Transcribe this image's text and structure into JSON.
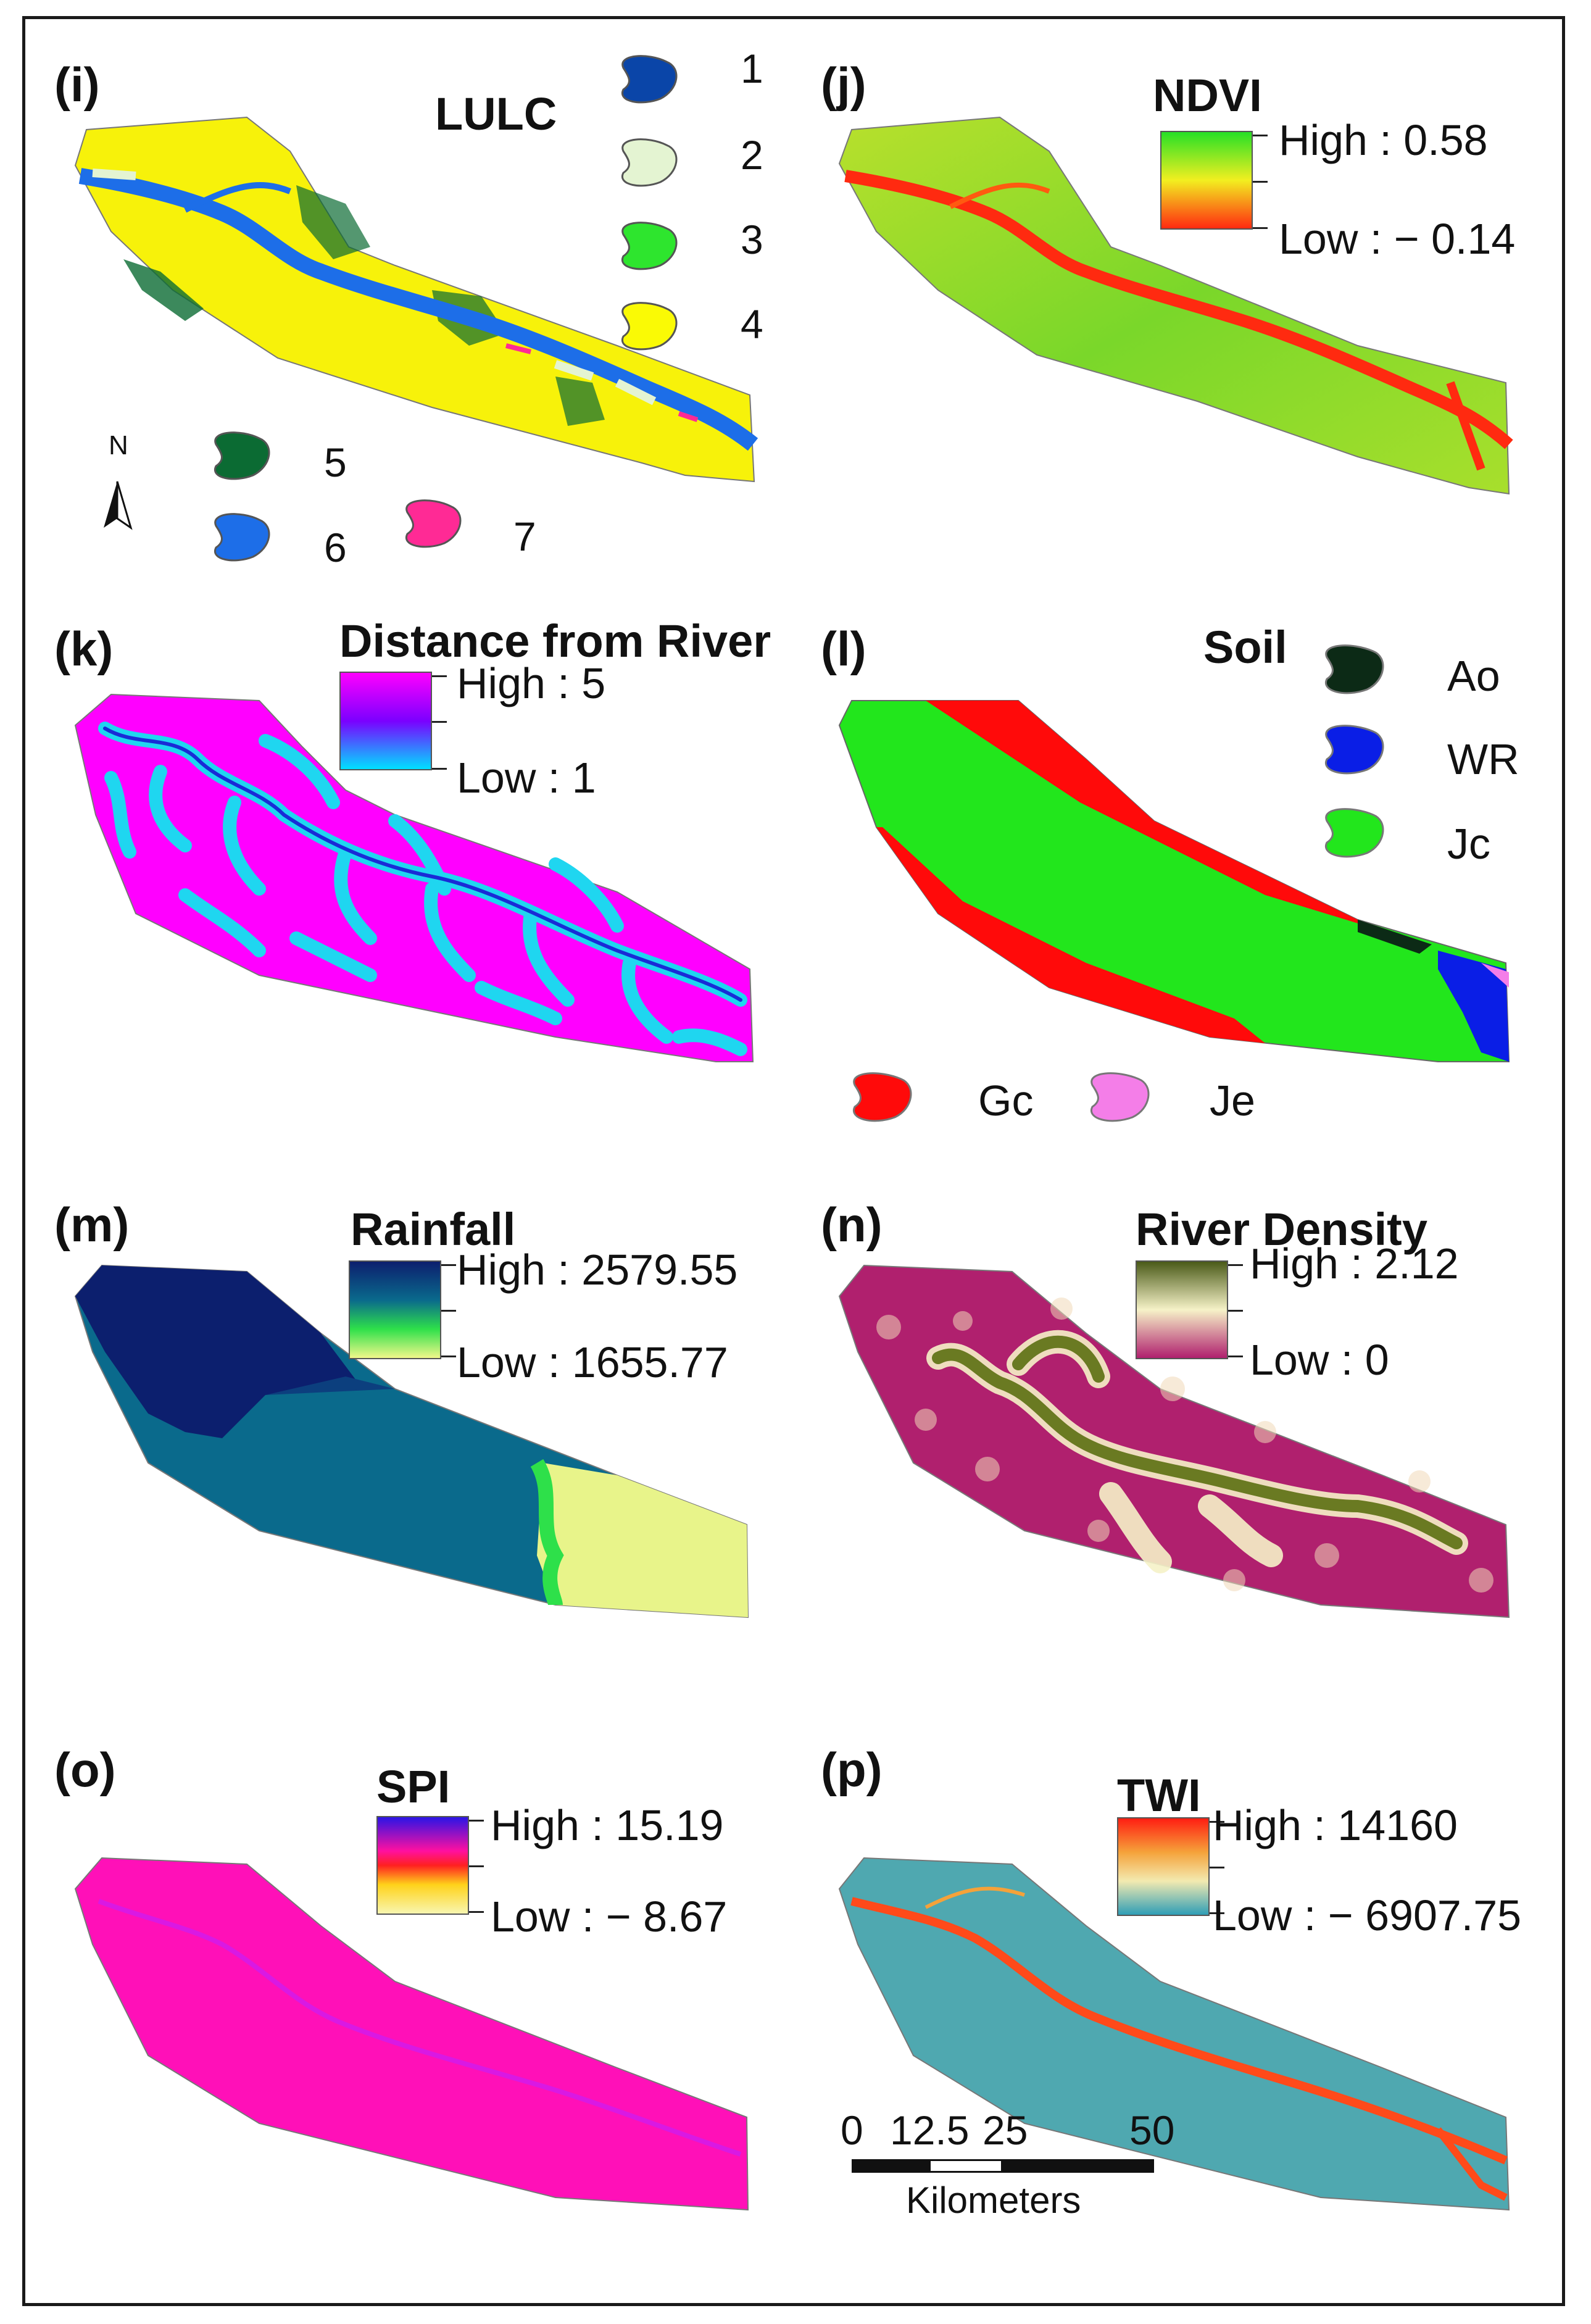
{
  "panels": {
    "i": {
      "label": "(i)",
      "title": "LULC",
      "legend": [
        {
          "label": "1",
          "color": "#0a45a8"
        },
        {
          "label": "2",
          "color": "#e4f4d2"
        },
        {
          "label": "3",
          "color": "#2ee52e"
        },
        {
          "label": "4",
          "color": "#fafa05"
        },
        {
          "label": "5",
          "color": "#0b6b33"
        },
        {
          "label": "6",
          "color": "#1d6ee8"
        },
        {
          "label": "7",
          "color": "#ff2a95"
        }
      ],
      "north": "N"
    },
    "j": {
      "label": "(j)",
      "title": "NDVI",
      "high": "High : 0.58",
      "low": "Low : − 0.14",
      "colors": [
        "#26e026",
        "#f2ef20",
        "#ff2a10"
      ]
    },
    "k": {
      "label": "(k)",
      "title": "Distance from River",
      "high": "High : 5",
      "low": "Low : 1",
      "colors": [
        "#ff00ff",
        "#7b00ff",
        "#00e0ff"
      ]
    },
    "l": {
      "label": "(l)",
      "title": "Soil",
      "legend": [
        {
          "label": "Ao",
          "color": "#0c2a16"
        },
        {
          "label": "WR",
          "color": "#0a1ee6"
        },
        {
          "label": "Jc",
          "color": "#22e61c"
        },
        {
          "label": "Gc",
          "color": "#ff0a0a"
        },
        {
          "label": "Je",
          "color": "#f47ee8"
        }
      ]
    },
    "m": {
      "label": "(m)",
      "title": "Rainfall",
      "high": "High : 2579.55",
      "low": "Low : 1655.77",
      "colors": [
        "#0c1f6e",
        "#0a6a8c",
        "#2ee04a",
        "#f0f78a"
      ]
    },
    "n": {
      "label": "(n)",
      "title": "River Density",
      "high": "High : 2.12",
      "low": "Low : 0",
      "colors": [
        "#4a5a18",
        "#f6f2c8",
        "#b0206e"
      ]
    },
    "o": {
      "label": "(o)",
      "title": "SPI",
      "high": "High : 15.19",
      "low": "Low : − 8.67",
      "colors": [
        "#2a14e6",
        "#ff10a0",
        "#ff2020",
        "#ffd21a",
        "#f8f6b0"
      ]
    },
    "p": {
      "label": "(p)",
      "title": "TWI",
      "high": "High : 14160",
      "low": "Low : − 6907.75",
      "colors": [
        "#ff1e12",
        "#f5a23a",
        "#f3eab0",
        "#2f9eb6"
      ]
    }
  },
  "scalebar": {
    "ticks": [
      "0",
      "12.5",
      "25",
      "50"
    ],
    "unit": "Kilometers"
  }
}
